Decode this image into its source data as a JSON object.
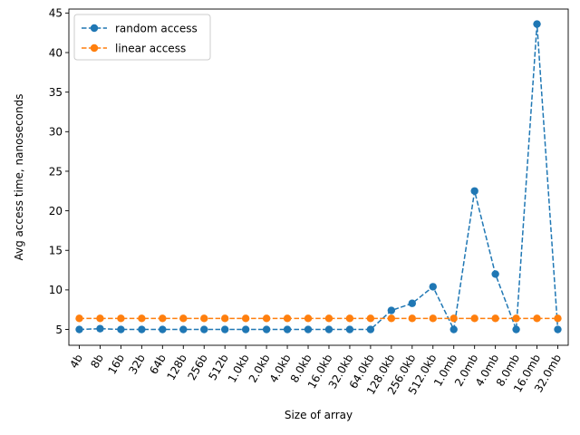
{
  "chart_data": {
    "type": "line",
    "xlabel": "Size of array",
    "ylabel": "Avg access time, nanoseconds",
    "categories": [
      "4b",
      "8b",
      "16b",
      "32b",
      "64b",
      "128b",
      "256b",
      "512b",
      "1.0kb",
      "2.0kb",
      "4.0kb",
      "8.0kb",
      "16.0kb",
      "32.0kb",
      "64.0kb",
      "128.0kb",
      "256.0kb",
      "512.0kb",
      "1.0mb",
      "2.0mb",
      "4.0mb",
      "8.0mb",
      "16.0mb",
      "32.0mb"
    ],
    "ylim": [
      3.0,
      45.5
    ],
    "yticks": [
      5,
      10,
      15,
      20,
      25,
      30,
      35,
      40,
      45
    ],
    "grid": false,
    "legend_position": "top-left",
    "series": [
      {
        "name": "random access",
        "color": "#1f77b4",
        "line_style": "dashed",
        "marker": "circle",
        "values": [
          5.0,
          5.1,
          5.0,
          5.0,
          5.0,
          5.0,
          5.0,
          5.0,
          5.0,
          5.0,
          5.0,
          5.0,
          5.0,
          5.0,
          5.0,
          7.4,
          8.3,
          10.4,
          5.0,
          22.5,
          12.0,
          5.0,
          43.6,
          5.0
        ]
      },
      {
        "name": "linear access",
        "color": "#ff7f0e",
        "line_style": "dashed",
        "marker": "circle",
        "values": [
          6.4,
          6.4,
          6.4,
          6.4,
          6.4,
          6.4,
          6.4,
          6.4,
          6.4,
          6.4,
          6.4,
          6.4,
          6.4,
          6.4,
          6.4,
          6.4,
          6.4,
          6.4,
          6.4,
          6.4,
          6.4,
          6.4,
          6.4,
          6.4
        ]
      }
    ]
  }
}
